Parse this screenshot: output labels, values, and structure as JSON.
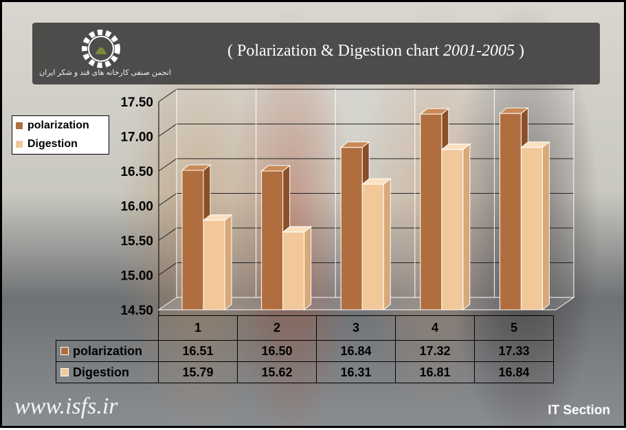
{
  "header": {
    "title_main": "Polarization & Digestion chart",
    "title_years": "2001-2005",
    "logo_text": "انجمن صنفی کارخانه های قند و شکر ایران"
  },
  "footer": {
    "url": "www.isfs.ir",
    "section": "IT Section"
  },
  "colors": {
    "polarization": "#b06e3e",
    "digestion": "#f2c89a"
  },
  "chart_data": {
    "type": "bar",
    "style": "3d-clustered",
    "title": "Polarization & Digestion chart 2001-2005",
    "categories": [
      "1",
      "2",
      "3",
      "4",
      "5"
    ],
    "series": [
      {
        "name": "polarization",
        "values": [
          16.51,
          16.5,
          16.84,
          17.32,
          17.33
        ]
      },
      {
        "name": "Digestion",
        "values": [
          15.79,
          15.62,
          16.31,
          16.81,
          16.84
        ]
      }
    ],
    "ylim": [
      14.5,
      17.5
    ],
    "yticks": [
      "14.50",
      "15.00",
      "15.50",
      "16.00",
      "16.50",
      "17.00",
      "17.50"
    ],
    "grid": true,
    "legend": "top-left",
    "data_table": true
  }
}
